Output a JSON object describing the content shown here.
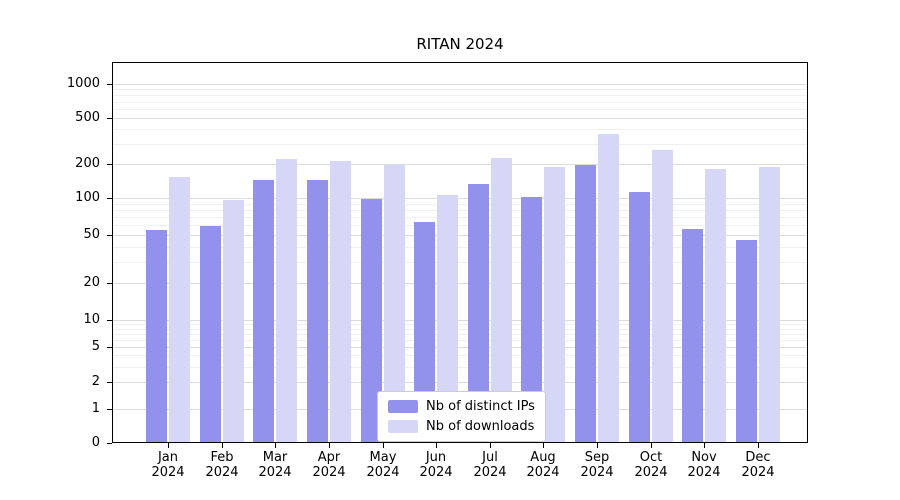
{
  "chart_data": {
    "type": "bar",
    "title": "RITAN 2024",
    "categories": [
      "Jan",
      "Feb",
      "Mar",
      "Apr",
      "May",
      "Jun",
      "Jul",
      "Aug",
      "Sep",
      "Oct",
      "Nov",
      "Dec"
    ],
    "year_label": "2024",
    "series": [
      {
        "name": "Nb of distinct IPs",
        "color": "#9292ec",
        "values": [
          54,
          58,
          140,
          141,
          96,
          62,
          130,
          100,
          190,
          110,
          55,
          44
        ]
      },
      {
        "name": "Nb of downloads",
        "color": "#d6d6f6",
        "values": [
          150,
          95,
          215,
          205,
          190,
          105,
          220,
          185,
          360,
          260,
          175,
          185
        ]
      }
    ],
    "yscale": "symlog",
    "y_ticks": [
      0,
      1,
      2,
      5,
      10,
      20,
      50,
      100,
      200,
      500,
      1000
    ],
    "ylim": [
      0,
      1000
    ],
    "xlabel": "",
    "ylabel": "",
    "grid": "horizontal",
    "legend_position": "lower-center"
  }
}
